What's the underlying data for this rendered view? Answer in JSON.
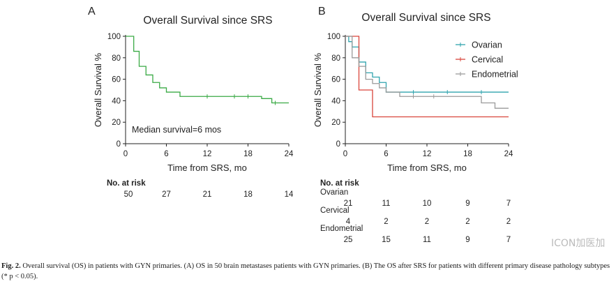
{
  "panels": [
    {
      "letter": "A",
      "chart_data": {
        "type": "line",
        "title": "Overall Survival since SRS",
        "xlabel": "Time from SRS, mo",
        "ylabel": "Overall Survival %",
        "xlim": [
          0,
          24
        ],
        "ylim": [
          0,
          100
        ],
        "xticks": [
          0,
          6,
          12,
          18,
          24
        ],
        "yticks": [
          0,
          20,
          40,
          60,
          80,
          100
        ],
        "series": [
          {
            "color": "#3aaa45",
            "x": [
              0,
              1,
              1.2,
              2,
              3,
              4,
              5,
              6,
              8,
              16,
              20,
              21.5,
              24
            ],
            "y": [
              100,
              100,
              86,
              72,
              64,
              57,
              52,
              48,
              44,
              44,
              42,
              38,
              38
            ],
            "censor_x": [
              12,
              16,
              18,
              22
            ],
            "censor_y": [
              44,
              44,
              44,
              38
            ]
          }
        ],
        "annotations": [
          "Median survival=6 mos"
        ]
      },
      "risk_table": {
        "header": "No. at risk",
        "rows": [
          {
            "name": "",
            "values": [
              "50",
              "27",
              "21",
              "18",
              "14"
            ]
          }
        ]
      }
    },
    {
      "letter": "B",
      "chart_data": {
        "type": "line",
        "title": "Overall Survival since SRS",
        "xlabel": "Time from SRS, mo",
        "ylabel": "Overall Survival %",
        "xlim": [
          0,
          24
        ],
        "ylim": [
          0,
          100
        ],
        "xticks": [
          0,
          6,
          12,
          18,
          24
        ],
        "yticks": [
          0,
          20,
          40,
          60,
          80,
          100
        ],
        "legend_position": "top-right",
        "series": [
          {
            "name": "Ovarian",
            "color": "#2fa3ae",
            "x": [
              0,
              0.5,
              1,
              2,
              3,
              4,
              5,
              6,
              24
            ],
            "y": [
              100,
              95,
              90,
              76,
              66,
              62,
              57,
              48,
              48
            ],
            "censor_x": [
              10,
              15,
              20
            ],
            "censor_y": [
              48,
              48,
              48
            ]
          },
          {
            "name": "Cervical",
            "color": "#d9453b",
            "x": [
              0,
              2,
              4,
              24
            ],
            "y": [
              100,
              50,
              25,
              25
            ],
            "censor_x": [],
            "censor_y": []
          },
          {
            "name": "Endometrial",
            "color": "#9a9a9a",
            "x": [
              0,
              1,
              2,
              3,
              4,
              5,
              6,
              8,
              20,
              22,
              24
            ],
            "y": [
              100,
              80,
              72,
              60,
              56,
              52,
              48,
              44,
              38,
              33,
              33
            ],
            "censor_x": [
              10,
              13
            ],
            "censor_y": [
              44,
              44
            ]
          }
        ]
      },
      "risk_table": {
        "header": "No. at risk",
        "rows": [
          {
            "name": "Ovarian",
            "values": [
              "21",
              "11",
              "10",
              "9",
              "7"
            ]
          },
          {
            "name": "Cervical",
            "values": [
              "4",
              "2",
              "2",
              "2",
              "2"
            ]
          },
          {
            "name": "Endometrial",
            "values": [
              "25",
              "15",
              "11",
              "9",
              "7"
            ]
          }
        ]
      }
    }
  ],
  "caption": {
    "label": "Fig. 2.",
    "text": "Overall survival (OS) in patients with GYN primaries. (A) OS in 50 brain metastases patients with GYN primaries. (B) The OS after SRS for patients with different primary disease pathology subtypes (* p < 0.05)."
  },
  "watermark": "ICON加医加"
}
